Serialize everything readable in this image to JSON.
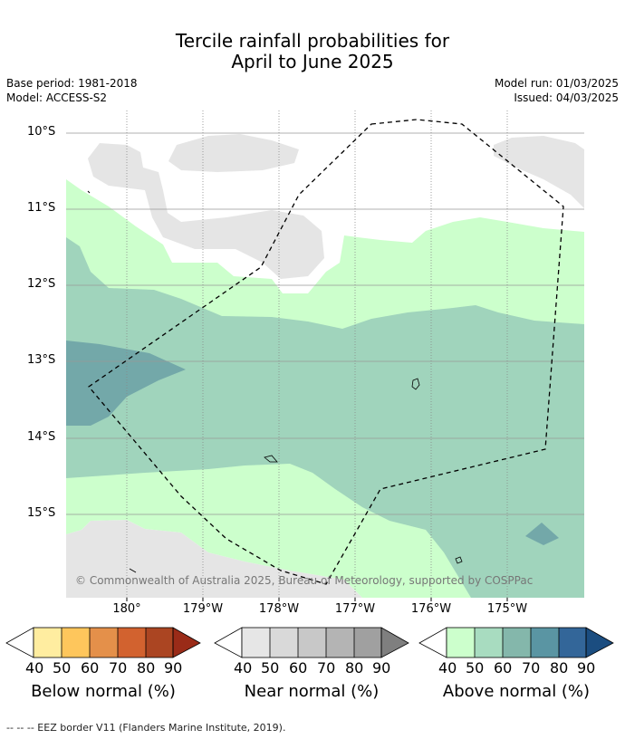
{
  "title_line1": "Tercile rainfall probabilities for",
  "title_line2": "April to June 2025",
  "base_period": "Base period: 1981-2018",
  "model": "Model: ACCESS-S2",
  "model_run": "Model run: 01/03/2025",
  "issued": "Issued: 04/03/2025",
  "lat_labels": [
    "10°S",
    "11°S",
    "12°S",
    "13°S",
    "14°S",
    "15°S"
  ],
  "lon_labels": [
    "180°",
    "179°W",
    "178°W",
    "177°W",
    "176°W",
    "175°W"
  ],
  "copyright": "© Commonwealth of Australia 2025, Bureau of Meteorology, supported by COSPPac",
  "colorbars": [
    {
      "title": "Below normal (%)",
      "ticks": [
        "40",
        "50",
        "60",
        "70",
        "80",
        "90"
      ],
      "colors": [
        "#ffeda0",
        "#fec65c",
        "#e4904a",
        "#d2622f",
        "#ab4522",
        "#9a2b18"
      ]
    },
    {
      "title": "Near normal (%)",
      "ticks": [
        "40",
        "50",
        "60",
        "70",
        "80",
        "90"
      ],
      "colors": [
        "#e6e6e6",
        "#d9d9d9",
        "#c8c8c8",
        "#b4b4b4",
        "#a0a0a0",
        "#7f7f7f"
      ]
    },
    {
      "title": "Above normal (%)",
      "ticks": [
        "40",
        "50",
        "60",
        "70",
        "80",
        "90"
      ],
      "colors": [
        "#ccffcc",
        "#a8dcc0",
        "#84b7ab",
        "#5a95a3",
        "#336699",
        "#1b4d80"
      ]
    }
  ],
  "footnote": "-- -- -- EEZ border V11 (Flanders Marine Institute, 2019).",
  "map_colors": {
    "near_normal": "#e5e5e5",
    "above_40": "#ccffcc",
    "above_50": "#a0d4bc",
    "above_60": "#73a8a9"
  }
}
